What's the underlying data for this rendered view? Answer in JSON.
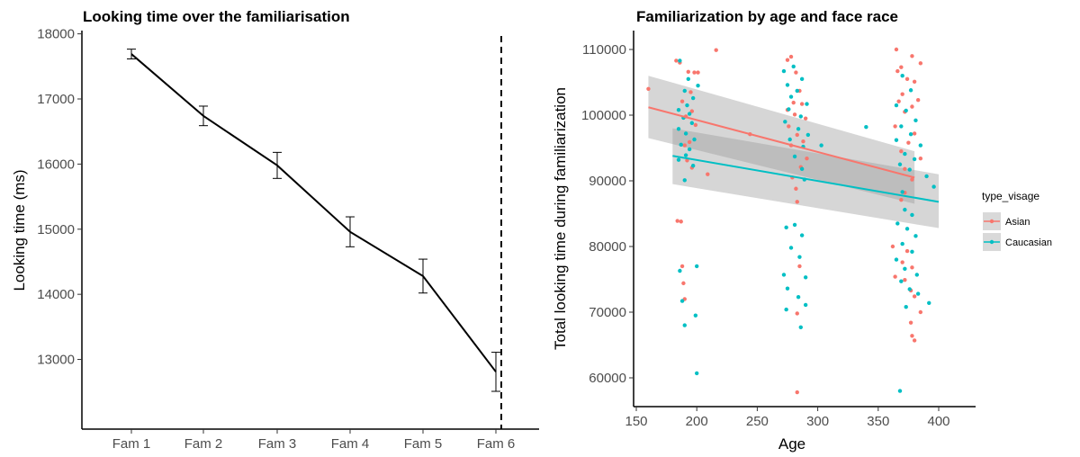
{
  "chart_data": [
    {
      "type": "line",
      "title": "Looking time over the familiarisation",
      "xlabel": "",
      "ylabel": "Looking time (ms)",
      "categories": [
        "Fam 1",
        "Fam 2",
        "Fam 3",
        "Fam 4",
        "Fam 5",
        "Fam 6"
      ],
      "values": [
        17690,
        16740,
        15980,
        14960,
        14280,
        12810
      ],
      "error": [
        75,
        150,
        200,
        230,
        260,
        300
      ],
      "yticks": [
        13000,
        14000,
        15000,
        16000,
        17000,
        18000
      ],
      "ylim": [
        11930,
        18050
      ],
      "vline_after": "Fam 6",
      "grid": false,
      "line_color": "#000000"
    },
    {
      "type": "scatter",
      "title": "Familiarization by age and face race",
      "xlabel": "Age",
      "ylabel": "Total looking time during familiarization",
      "xticks": [
        150,
        200,
        250,
        300,
        350,
        400
      ],
      "yticks": [
        60000,
        70000,
        80000,
        90000,
        100000,
        110000
      ],
      "xlim": [
        145,
        415
      ],
      "ylim": [
        56500,
        112500
      ],
      "legend_title": "type_visage",
      "legend_position": "right",
      "grid": false,
      "series": [
        {
          "name": "Asian",
          "color": "#F8766D",
          "fit": {
            "x0": 160,
            "y0": 101200,
            "x1": 380,
            "y1": 90500,
            "se_lo0": 96500,
            "se_hi0": 106000,
            "se_lo1": 86500,
            "se_hi1": 94500
          },
          "points": [
            [
              160,
              104000
            ],
            [
              183,
              108300
            ],
            [
              186,
              108000
            ],
            [
              193,
              106600
            ],
            [
              195,
              103500
            ],
            [
              198,
              106500
            ],
            [
              201,
              106500
            ],
            [
              216,
              109900
            ],
            [
              188,
              102100
            ],
            [
              196,
              100600
            ],
            [
              191,
              99800
            ],
            [
              199,
              98500
            ],
            [
              190,
              95400
            ],
            [
              194,
              95900
            ],
            [
              192,
              93100
            ],
            [
              196,
              92000
            ],
            [
              209,
              91000
            ],
            [
              184,
              83900
            ],
            [
              187,
              83800
            ],
            [
              188,
              77000
            ],
            [
              189,
              74400
            ],
            [
              190,
              72000
            ],
            [
              244,
              97100
            ],
            [
              275,
              108400
            ],
            [
              278,
              108900
            ],
            [
              282,
              106500
            ],
            [
              285,
              103700
            ],
            [
              280,
              101900
            ],
            [
              287,
              101700
            ],
            [
              275,
              100800
            ],
            [
              281,
              100100
            ],
            [
              290,
              99500
            ],
            [
              276,
              98300
            ],
            [
              283,
              97000
            ],
            [
              288,
              96000
            ],
            [
              278,
              95400
            ],
            [
              291,
              93400
            ],
            [
              286,
              92100
            ],
            [
              279,
              90500
            ],
            [
              282,
              88800
            ],
            [
              283,
              86800
            ],
            [
              285,
              77000
            ],
            [
              283,
              69800
            ],
            [
              283,
              57800
            ],
            [
              365,
              110000
            ],
            [
              369,
              107300
            ],
            [
              378,
              109000
            ],
            [
              385,
              107900
            ],
            [
              366,
              106700
            ],
            [
              374,
              105500
            ],
            [
              380,
              105100
            ],
            [
              370,
              103200
            ],
            [
              383,
              102300
            ],
            [
              367,
              102100
            ],
            [
              378,
              101300
            ],
            [
              372,
              100500
            ],
            [
              364,
              98300
            ],
            [
              380,
              97200
            ],
            [
              375,
              95800
            ],
            [
              369,
              94500
            ],
            [
              385,
              93400
            ],
            [
              372,
              91800
            ],
            [
              378,
              90200
            ],
            [
              372,
              88200
            ],
            [
              369,
              87100
            ],
            [
              362,
              80000
            ],
            [
              374,
              79300
            ],
            [
              370,
              77600
            ],
            [
              378,
              76800
            ],
            [
              364,
              75400
            ],
            [
              372,
              74900
            ],
            [
              377,
              73300
            ],
            [
              380,
              72400
            ],
            [
              385,
              70000
            ],
            [
              377,
              68400
            ],
            [
              378,
              66400
            ],
            [
              380,
              65700
            ]
          ]
        },
        {
          "name": "Caucasian",
          "color": "#00BFC4",
          "fit": {
            "x0": 180,
            "y0": 93800,
            "x1": 400,
            "y1": 86800,
            "se_lo0": 89500,
            "se_hi0": 98000,
            "se_lo1": 82800,
            "se_hi1": 91000
          },
          "points": [
            [
              186,
              108300
            ],
            [
              193,
              105500
            ],
            [
              201,
              104500
            ],
            [
              190,
              103700
            ],
            [
              197,
              102600
            ],
            [
              192,
              101500
            ],
            [
              185,
              100800
            ],
            [
              194,
              100200
            ],
            [
              189,
              99600
            ],
            [
              196,
              98800
            ],
            [
              185,
              97900
            ],
            [
              191,
              97200
            ],
            [
              198,
              96300
            ],
            [
              187,
              95500
            ],
            [
              194,
              94800
            ],
            [
              191,
              93900
            ],
            [
              185,
              93200
            ],
            [
              197,
              92300
            ],
            [
              190,
              90100
            ],
            [
              186,
              76300
            ],
            [
              200,
              77000
            ],
            [
              188,
              71700
            ],
            [
              199,
              69500
            ],
            [
              190,
              68000
            ],
            [
              200,
              60700
            ],
            [
              272,
              106700
            ],
            [
              280,
              107400
            ],
            [
              287,
              105500
            ],
            [
              275,
              104600
            ],
            [
              283,
              103700
            ],
            [
              278,
              102800
            ],
            [
              291,
              101700
            ],
            [
              276,
              100900
            ],
            [
              286,
              99800
            ],
            [
              273,
              99000
            ],
            [
              284,
              97900
            ],
            [
              292,
              97000
            ],
            [
              277,
              96300
            ],
            [
              288,
              95200
            ],
            [
              303,
              95400
            ],
            [
              281,
              93700
            ],
            [
              287,
              91800
            ],
            [
              289,
              90200
            ],
            [
              274,
              82900
            ],
            [
              281,
              83300
            ],
            [
              287,
              81700
            ],
            [
              278,
              79800
            ],
            [
              285,
              78400
            ],
            [
              272,
              75700
            ],
            [
              290,
              75300
            ],
            [
              275,
              73600
            ],
            [
              284,
              72300
            ],
            [
              290,
              71100
            ],
            [
              274,
              70400
            ],
            [
              286,
              67700
            ],
            [
              340,
              98200
            ],
            [
              370,
              106000
            ],
            [
              377,
              103800
            ],
            [
              365,
              101500
            ],
            [
              373,
              100700
            ],
            [
              381,
              99200
            ],
            [
              369,
              98300
            ],
            [
              377,
              97100
            ],
            [
              365,
              96200
            ],
            [
              385,
              95400
            ],
            [
              372,
              94100
            ],
            [
              380,
              93300
            ],
            [
              368,
              92500
            ],
            [
              376,
              91700
            ],
            [
              390,
              90700
            ],
            [
              396,
              89100
            ],
            [
              370,
              88300
            ],
            [
              372,
              85600
            ],
            [
              378,
              84800
            ],
            [
              366,
              83500
            ],
            [
              374,
              82700
            ],
            [
              381,
              81600
            ],
            [
              370,
              80400
            ],
            [
              378,
              79200
            ],
            [
              365,
              78000
            ],
            [
              372,
              76600
            ],
            [
              382,
              75700
            ],
            [
              369,
              74700
            ],
            [
              376,
              73500
            ],
            [
              383,
              72800
            ],
            [
              392,
              71400
            ],
            [
              373,
              70800
            ],
            [
              368,
              58000
            ]
          ]
        }
      ]
    }
  ]
}
